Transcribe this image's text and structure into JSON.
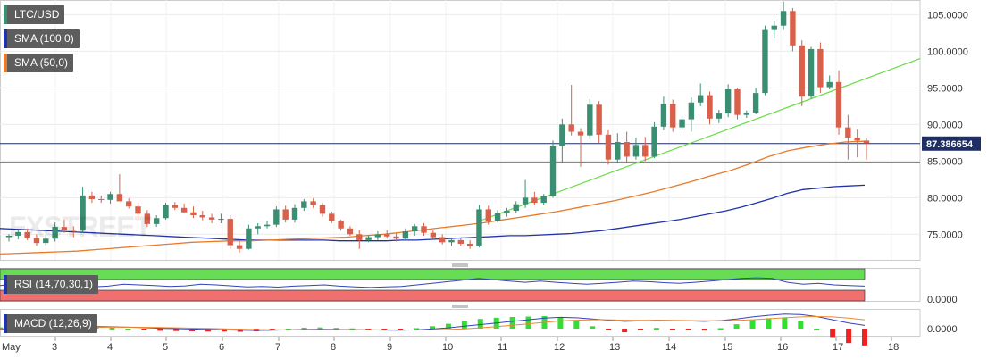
{
  "legend": {
    "symbol": "LTC/USD",
    "sma100": "SMA (100,0)",
    "sma50": "SMA (50,0)",
    "rsi": "RSI (14,70,30,1)",
    "macd": "MACD (12,26,9)"
  },
  "watermark": "FXSTREET",
  "price_label": "87.386654",
  "colors": {
    "up": "#3a8f72",
    "down": "#d9604a",
    "sma100": "#2233aa",
    "sma50": "#e87a2a",
    "trend": "#66dd44",
    "rsi_over": "#66dd55",
    "rsi_under": "#f07070",
    "macd_hist_pos": "#33dd33",
    "macd_hist_neg": "#ee2222",
    "macd_line": "#3344bb",
    "signal_line": "#ee8833"
  },
  "chart_data": {
    "type": "candlestick",
    "symbol": "LTC/USD",
    "x_ticks": [
      "May",
      "3",
      "4",
      "5",
      "6",
      "7",
      "8",
      "9",
      "10",
      "11",
      "12",
      "13",
      "14",
      "15",
      "16",
      "17",
      "18"
    ],
    "y_ticks": [
      "75.0000",
      "80.0000",
      "85.0000",
      "90.0000",
      "95.0000",
      "100.0000",
      "105.0000"
    ],
    "ylim": [
      71.5,
      107
    ],
    "current_price": 87.386654,
    "support_level": 84.8,
    "candles": [
      [
        74.6,
        75.0,
        74.0,
        74.8
      ],
      [
        74.8,
        75.6,
        74.3,
        75.3
      ],
      [
        75.3,
        75.8,
        74.2,
        74.5
      ],
      [
        74.5,
        75.0,
        73.4,
        73.8
      ],
      [
        73.8,
        74.9,
        73.5,
        74.4
      ],
      [
        74.4,
        76.6,
        74.0,
        76.0
      ],
      [
        76.0,
        77.0,
        75.2,
        75.6
      ],
      [
        75.6,
        76.1,
        74.6,
        75.5
      ],
      [
        75.5,
        81.5,
        75.2,
        80.3
      ],
      [
        80.3,
        80.8,
        79.3,
        79.8
      ],
      [
        79.8,
        80.3,
        79.3,
        79.7
      ],
      [
        79.7,
        80.8,
        79.2,
        80.5
      ],
      [
        80.5,
        83.2,
        79.8,
        79.5
      ],
      [
        79.5,
        79.9,
        78.5,
        78.8
      ],
      [
        78.8,
        79.3,
        77.3,
        77.8
      ],
      [
        77.8,
        78.3,
        76.0,
        76.4
      ],
      [
        76.4,
        77.6,
        76.0,
        77.2
      ],
      [
        77.2,
        79.3,
        77.0,
        79.0
      ],
      [
        79.0,
        79.4,
        78.3,
        78.6
      ],
      [
        78.6,
        79.2,
        77.9,
        78.0
      ],
      [
        78.0,
        78.8,
        77.2,
        77.6
      ],
      [
        77.6,
        78.2,
        76.9,
        77.3
      ],
      [
        77.3,
        77.8,
        76.5,
        77.0
      ],
      [
        77.0,
        77.8,
        76.5,
        77.1
      ],
      [
        77.1,
        77.6,
        73.0,
        73.5
      ],
      [
        73.5,
        74.2,
        72.5,
        73.0
      ],
      [
        73.0,
        76.3,
        72.9,
        75.8
      ],
      [
        75.8,
        76.5,
        75.0,
        76.1
      ],
      [
        76.1,
        76.8,
        75.8,
        76.3
      ],
      [
        76.3,
        78.8,
        76.0,
        78.4
      ],
      [
        78.4,
        78.9,
        76.6,
        77.0
      ],
      [
        77.0,
        79.1,
        76.6,
        78.6
      ],
      [
        78.6,
        79.8,
        78.2,
        79.5
      ],
      [
        79.5,
        79.9,
        78.6,
        79.0
      ],
      [
        79.0,
        79.3,
        77.4,
        77.8
      ],
      [
        77.8,
        78.1,
        76.5,
        76.8
      ],
      [
        76.8,
        77.0,
        75.5,
        75.8
      ],
      [
        75.8,
        76.1,
        74.8,
        75.0
      ],
      [
        75.0,
        75.6,
        73.0,
        74.2
      ],
      [
        74.2,
        74.9,
        73.9,
        74.6
      ],
      [
        74.6,
        75.4,
        74.2,
        75.0
      ],
      [
        75.0,
        75.6,
        74.4,
        74.7
      ],
      [
        74.7,
        75.1,
        74.0,
        74.4
      ],
      [
        74.4,
        75.8,
        74.2,
        75.4
      ],
      [
        75.4,
        76.4,
        74.8,
        76.1
      ],
      [
        76.1,
        76.5,
        74.8,
        75.2
      ],
      [
        75.2,
        75.5,
        74.3,
        74.6
      ],
      [
        74.6,
        75.0,
        73.6,
        73.9
      ],
      [
        73.9,
        74.5,
        73.4,
        74.2
      ],
      [
        74.2,
        74.6,
        73.4,
        73.7
      ],
      [
        73.7,
        74.2,
        73.0,
        73.4
      ],
      [
        73.4,
        79.0,
        73.2,
        78.4
      ],
      [
        78.4,
        78.9,
        76.3,
        76.8
      ],
      [
        76.8,
        78.3,
        76.6,
        77.9
      ],
      [
        77.9,
        78.6,
        77.4,
        78.2
      ],
      [
        78.2,
        79.5,
        77.9,
        79.1
      ],
      [
        79.1,
        82.4,
        78.6,
        80.0
      ],
      [
        80.0,
        80.8,
        79.0,
        79.3
      ],
      [
        79.3,
        80.5,
        79.0,
        80.2
      ],
      [
        80.2,
        87.8,
        80.0,
        87.0
      ],
      [
        87.0,
        90.8,
        84.7,
        90.0
      ],
      [
        90.0,
        95.4,
        88.5,
        89.0
      ],
      [
        89.0,
        89.5,
        84.2,
        88.5
      ],
      [
        88.5,
        93.5,
        88.0,
        92.7
      ],
      [
        92.7,
        93.2,
        87.5,
        88.6
      ],
      [
        88.6,
        89.2,
        84.5,
        85.2
      ],
      [
        85.2,
        88.8,
        84.8,
        87.6
      ],
      [
        87.6,
        89.0,
        84.8,
        85.6
      ],
      [
        85.6,
        88.2,
        85.2,
        87.2
      ],
      [
        87.2,
        88.3,
        85.0,
        85.6
      ],
      [
        85.6,
        90.3,
        85.4,
        89.7
      ],
      [
        89.7,
        93.8,
        89.2,
        92.8
      ],
      [
        92.8,
        93.4,
        89.0,
        89.6
      ],
      [
        89.6,
        91.3,
        89.2,
        90.7
      ],
      [
        90.7,
        93.7,
        89.0,
        93.0
      ],
      [
        93.0,
        95.6,
        92.5,
        94.0
      ],
      [
        94.0,
        94.5,
        90.0,
        90.8
      ],
      [
        90.8,
        92.0,
        90.2,
        91.5
      ],
      [
        91.5,
        95.5,
        91.0,
        94.8
      ],
      [
        94.8,
        95.0,
        90.7,
        91.3
      ],
      [
        91.3,
        91.9,
        90.9,
        91.6
      ],
      [
        91.6,
        95.0,
        91.4,
        94.3
      ],
      [
        94.3,
        103.5,
        94.0,
        102.9
      ],
      [
        102.9,
        104.2,
        101.8,
        103.5
      ],
      [
        103.5,
        106.8,
        102.9,
        105.5
      ],
      [
        105.5,
        105.9,
        100.0,
        100.8
      ],
      [
        100.8,
        101.5,
        92.5,
        93.8
      ],
      [
        93.8,
        100.6,
        93.5,
        100.3
      ],
      [
        100.3,
        101.2,
        94.3,
        95.1
      ],
      [
        95.1,
        96.7,
        94.8,
        95.8
      ],
      [
        95.8,
        97.4,
        88.6,
        89.6
      ],
      [
        89.6,
        91.3,
        85.2,
        88.2
      ],
      [
        88.2,
        89.3,
        85.5,
        87.8
      ],
      [
        87.8,
        88.1,
        85.2,
        87.4
      ]
    ],
    "sma100": [
      75.8,
      75.7,
      75.6,
      75.5,
      75.4,
      75.3,
      75.2,
      75.1,
      75.0,
      74.9,
      74.8,
      74.7,
      74.6,
      74.5,
      74.4,
      74.3,
      74.2,
      74.2,
      74.2,
      74.2,
      74.2,
      74.2,
      74.1,
      74.1,
      74.1,
      74.1,
      74.2,
      74.2,
      74.3,
      74.4,
      74.5,
      74.6,
      74.7,
      74.8,
      74.8,
      74.9,
      75.0,
      75.1,
      75.3,
      75.5,
      75.8,
      76.1,
      76.4,
      76.7,
      77.0,
      77.4,
      77.8,
      78.2,
      78.7,
      79.3,
      79.9,
      80.6,
      81.1,
      81.3,
      81.5,
      81.6,
      81.7
    ],
    "sma50": [
      72.3,
      72.4,
      72.5,
      72.6,
      72.7,
      72.9,
      73.1,
      73.3,
      73.5,
      73.7,
      73.9,
      74.0,
      74.1,
      74.1,
      74.2,
      74.3,
      74.4,
      74.5,
      74.6,
      74.8,
      75.0,
      75.3,
      75.6,
      75.9,
      76.2,
      76.5,
      76.9,
      77.3,
      77.7,
      78.1,
      78.6,
      79.1,
      79.6,
      80.2,
      80.8,
      81.5,
      82.2,
      83.0,
      83.7,
      84.6,
      85.6,
      86.4,
      86.9,
      87.3,
      87.6,
      87.7
    ],
    "rsi": [
      48,
      52,
      58,
      55,
      50,
      47,
      44,
      46,
      52,
      50,
      48,
      45,
      47,
      52,
      50,
      47,
      44,
      45,
      43,
      46,
      48,
      50,
      46,
      44,
      42,
      44,
      45,
      50,
      55,
      60,
      65,
      70,
      66,
      62,
      58,
      62,
      58,
      55,
      52,
      55,
      58,
      62,
      60,
      57,
      55,
      58,
      62,
      66,
      70,
      72,
      70,
      58,
      52,
      55,
      50,
      48,
      46
    ],
    "rsi_levels": [
      70,
      30
    ],
    "macd": [
      -0.05,
      0.02,
      0.08,
      0.12,
      0.18,
      0.22,
      0.24,
      0.22,
      0.18,
      0.12,
      0.05,
      0.0,
      -0.05,
      -0.1,
      -0.15,
      -0.2,
      -0.22,
      -0.2,
      -0.15,
      -0.1,
      -0.08,
      -0.1,
      -0.12,
      -0.15,
      -0.18,
      -0.2,
      -0.15,
      -0.05,
      0.1,
      0.3,
      0.5,
      0.7,
      0.9,
      1.1,
      1.3,
      1.4,
      1.35,
      1.2,
      1.05,
      0.9,
      0.95,
      1.05,
      1.0,
      0.95,
      0.9,
      1.0,
      1.2,
      1.45,
      1.65,
      1.8,
      1.75,
      1.5,
      1.1,
      0.7,
      0.4
    ],
    "signal": [
      -0.1,
      -0.08,
      -0.03,
      0.02,
      0.07,
      0.12,
      0.16,
      0.18,
      0.18,
      0.17,
      0.14,
      0.1,
      0.06,
      0.02,
      -0.03,
      -0.07,
      -0.11,
      -0.14,
      -0.15,
      -0.14,
      -0.13,
      -0.13,
      -0.13,
      -0.14,
      -0.15,
      -0.17,
      -0.17,
      -0.15,
      -0.1,
      -0.02,
      0.1,
      0.25,
      0.42,
      0.6,
      0.78,
      0.95,
      1.05,
      1.1,
      1.1,
      1.05,
      1.02,
      1.02,
      1.02,
      1.0,
      0.98,
      0.98,
      1.02,
      1.1,
      1.22,
      1.35,
      1.45,
      1.5,
      1.45,
      1.3,
      1.1
    ],
    "macd_y_tick": "0.0000",
    "rsi_y_tick": "0.0000"
  }
}
